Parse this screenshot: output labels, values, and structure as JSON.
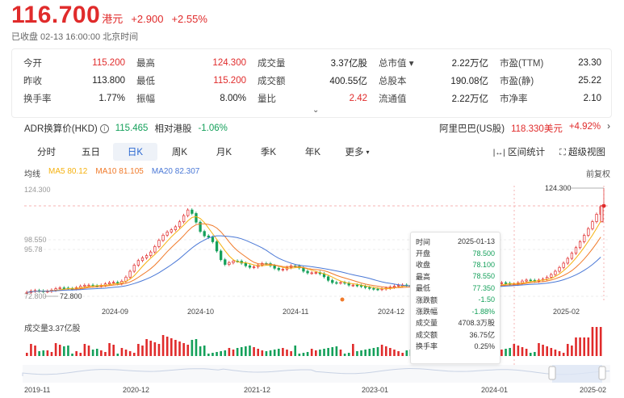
{
  "header": {
    "price": "116.700",
    "currency": "港元",
    "change": "+2.900",
    "change_pct": "+2.55%",
    "status": "已收盘  02-13 16:00:00 北京时间"
  },
  "stats": [
    {
      "label": "今开",
      "value": "115.200",
      "up": true
    },
    {
      "label": "最高",
      "value": "124.300",
      "up": true
    },
    {
      "label": "成交量",
      "value": "3.37亿股",
      "up": false
    },
    {
      "label": "总市值 ▾",
      "value": "2.22万亿",
      "up": false
    },
    {
      "label": "市盈(TTM)",
      "value": "23.30",
      "up": false
    },
    {
      "label": "昨收",
      "value": "113.800",
      "up": false
    },
    {
      "label": "最低",
      "value": "115.200",
      "up": true
    },
    {
      "label": "成交额",
      "value": "400.55亿",
      "up": false
    },
    {
      "label": "总股本",
      "value": "190.08亿",
      "up": false
    },
    {
      "label": "市盈(静)",
      "value": "25.22",
      "up": false
    },
    {
      "label": "换手率",
      "value": "1.77%",
      "up": false
    },
    {
      "label": "振幅",
      "value": "8.00%",
      "up": false
    },
    {
      "label": "量比",
      "value": "2.42",
      "up": true
    },
    {
      "label": "流通值",
      "value": "2.22万亿",
      "up": false
    },
    {
      "label": "市净率",
      "value": "2.10",
      "up": false
    }
  ],
  "adr": {
    "label": "ADR换算价(HKD)",
    "value": "115.465",
    "rel_label": "相对港股",
    "rel_value": "-1.06%",
    "us_name": "阿里巴巴(US股)",
    "us_price": "118.330美元",
    "us_pct": "+4.92%"
  },
  "tabs": [
    {
      "label": "分时",
      "active": false
    },
    {
      "label": "五日",
      "active": false
    },
    {
      "label": "日K",
      "active": true
    },
    {
      "label": "周K",
      "active": false
    },
    {
      "label": "月K",
      "active": false
    },
    {
      "label": "季K",
      "active": false
    },
    {
      "label": "年K",
      "active": false
    },
    {
      "label": "更多",
      "active": false
    }
  ],
  "tools": {
    "range_stats": "区间统计",
    "super_view": "超级视图"
  },
  "ma": {
    "title": "均线",
    "ma5": "MA5 80.12",
    "ma10": "MA10 81.105",
    "ma20": "MA20 82.307",
    "adjust": "前复权",
    "ma5_color": "#f5b10f",
    "ma10_color": "#f07a2a",
    "ma20_color": "#4a78d6"
  },
  "chart_data": {
    "type": "candlestick",
    "y_labels": [
      "124.300",
      "98.550",
      "95.78",
      "72.800"
    ],
    "x_labels": [
      "2024-09",
      "2024-10",
      "2024-11",
      "2024-12",
      "2025-02"
    ],
    "high_marker": "124.300",
    "low_marker": "72.800",
    "volume_label": "成交量3.37亿股",
    "timeline_labels": [
      "2019-11",
      "2020-12",
      "2021-12",
      "2023-01",
      "2024-01",
      "2025-02"
    ]
  },
  "tooltip": {
    "rows": [
      {
        "label": "时间",
        "value": "2025-01-13",
        "down": false
      },
      {
        "label": "开盘",
        "value": "78.500",
        "down": true
      },
      {
        "label": "收盘",
        "value": "78.100",
        "down": true
      },
      {
        "label": "最高",
        "value": "78.550",
        "down": true
      },
      {
        "label": "最低",
        "value": "77.350",
        "down": true
      },
      {
        "label": "涨跌额",
        "value": "-1.50",
        "down": true
      },
      {
        "label": "涨跌幅",
        "value": "-1.88%",
        "down": true
      },
      {
        "label": "成交量",
        "value": "4708.3万股",
        "down": false
      },
      {
        "label": "成交额",
        "value": "36.75亿",
        "down": false
      },
      {
        "label": "换手率",
        "value": "0.25%",
        "down": false
      }
    ]
  }
}
